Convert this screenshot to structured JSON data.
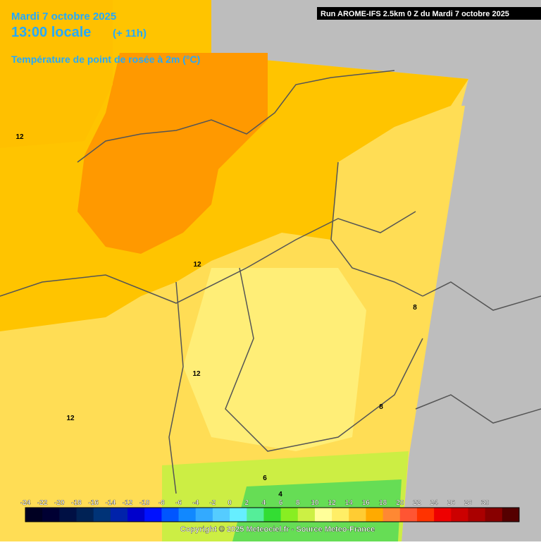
{
  "header": {
    "date": "Mardi 7 octobre 2025",
    "time": "13:00 locale",
    "offset": "(+ 11h)",
    "parameter": "Température de point de rosée à 2m (°C)",
    "run": "Run AROME-IFS 2.5km 0 Z du Mardi 7 octobre 2025"
  },
  "contour_labels": [
    "12",
    "12",
    "12",
    "12",
    "8",
    "8",
    "6",
    "4"
  ],
  "colorbar": {
    "labels": [
      "-24",
      "-22",
      "-20",
      "-18",
      "-16",
      "-14",
      "-12",
      "-10",
      "-8",
      "-6",
      "-4",
      "-2",
      "0",
      "2",
      "4",
      "6",
      "8",
      "10",
      "12",
      "14",
      "16",
      "18",
      "20",
      "22",
      "24",
      "26",
      "28",
      "30"
    ],
    "colors": [
      "#000022",
      "#000033",
      "#001044",
      "#002255",
      "#003377",
      "#0022aa",
      "#0000cc",
      "#0011ff",
      "#0055ff",
      "#1188ff",
      "#33aaff",
      "#55ccff",
      "#66eeff",
      "#55ee99",
      "#33dd33",
      "#88ee22",
      "#ccf044",
      "#ffff99",
      "#ffee66",
      "#ffcc33",
      "#ffaa00",
      "#ff8833",
      "#ff5533",
      "#ff3300",
      "#ee0000",
      "#cc0000",
      "#aa0000",
      "#880000",
      "#550000"
    ]
  },
  "copyright": "Copyright © 2025 Meteociel.fr - Source Meteo-France"
}
